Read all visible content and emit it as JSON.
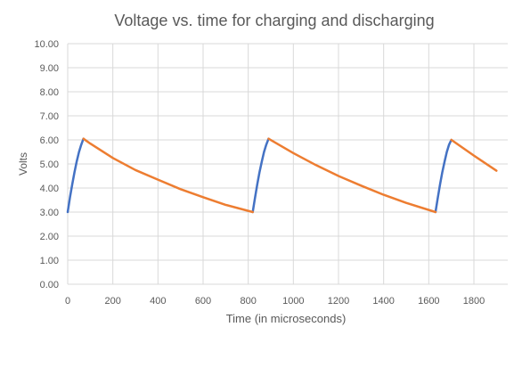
{
  "chart_data": {
    "type": "line",
    "title": "Voltage vs. time for charging and discharging",
    "xlabel": "Time (in microseconds)",
    "ylabel": "Volts",
    "xlim": [
      0,
      1950
    ],
    "ylim": [
      0,
      10
    ],
    "x_ticks": [
      "0",
      "200",
      "400",
      "600",
      "800",
      "1000",
      "1200",
      "1400",
      "1600",
      "1800"
    ],
    "x_tick_values": [
      0,
      200,
      400,
      600,
      800,
      1000,
      1200,
      1400,
      1600,
      1800
    ],
    "y_ticks": [
      "0.00",
      "1.00",
      "2.00",
      "3.00",
      "4.00",
      "5.00",
      "6.00",
      "7.00",
      "8.00",
      "9.00",
      "10.00"
    ],
    "y_tick_values": [
      0,
      1,
      2,
      3,
      4,
      5,
      6,
      7,
      8,
      9,
      10
    ],
    "grid": true,
    "legend": "none",
    "series": [
      {
        "color": "#4472C4",
        "segments": [
          [
            [
              0,
              3.0
            ],
            [
              10,
              3.6
            ],
            [
              20,
              4.15
            ],
            [
              30,
              4.65
            ],
            [
              40,
              5.1
            ],
            [
              50,
              5.5
            ],
            [
              60,
              5.8
            ],
            [
              70,
              6.05
            ]
          ],
          [
            [
              820,
              3.0
            ],
            [
              830,
              3.6
            ],
            [
              840,
              4.15
            ],
            [
              850,
              4.65
            ],
            [
              860,
              5.1
            ],
            [
              870,
              5.5
            ],
            [
              880,
              5.8
            ],
            [
              890,
              6.05
            ]
          ],
          [
            [
              1630,
              3.0
            ],
            [
              1640,
              3.6
            ],
            [
              1650,
              4.15
            ],
            [
              1660,
              4.65
            ],
            [
              1670,
              5.1
            ],
            [
              1680,
              5.5
            ],
            [
              1690,
              5.8
            ],
            [
              1700,
              6.0
            ]
          ]
        ]
      },
      {
        "color": "#ED7D31",
        "segments": [
          [
            [
              70,
              6.05
            ],
            [
              100,
              5.85
            ],
            [
              200,
              5.25
            ],
            [
              300,
              4.75
            ],
            [
              400,
              4.35
            ],
            [
              500,
              3.95
            ],
            [
              600,
              3.62
            ],
            [
              700,
              3.3
            ],
            [
              820,
              3.0
            ]
          ],
          [
            [
              890,
              6.05
            ],
            [
              1000,
              5.45
            ],
            [
              1100,
              4.95
            ],
            [
              1200,
              4.5
            ],
            [
              1300,
              4.1
            ],
            [
              1400,
              3.72
            ],
            [
              1500,
              3.38
            ],
            [
              1630,
              3.0
            ]
          ],
          [
            [
              1700,
              6.0
            ],
            [
              1800,
              5.35
            ],
            [
              1900,
              4.72
            ]
          ]
        ]
      }
    ],
    "colors": {
      "grid": "#d9d9d9",
      "axis": "#d9d9d9",
      "text": "#595959",
      "title": "#595959"
    }
  }
}
